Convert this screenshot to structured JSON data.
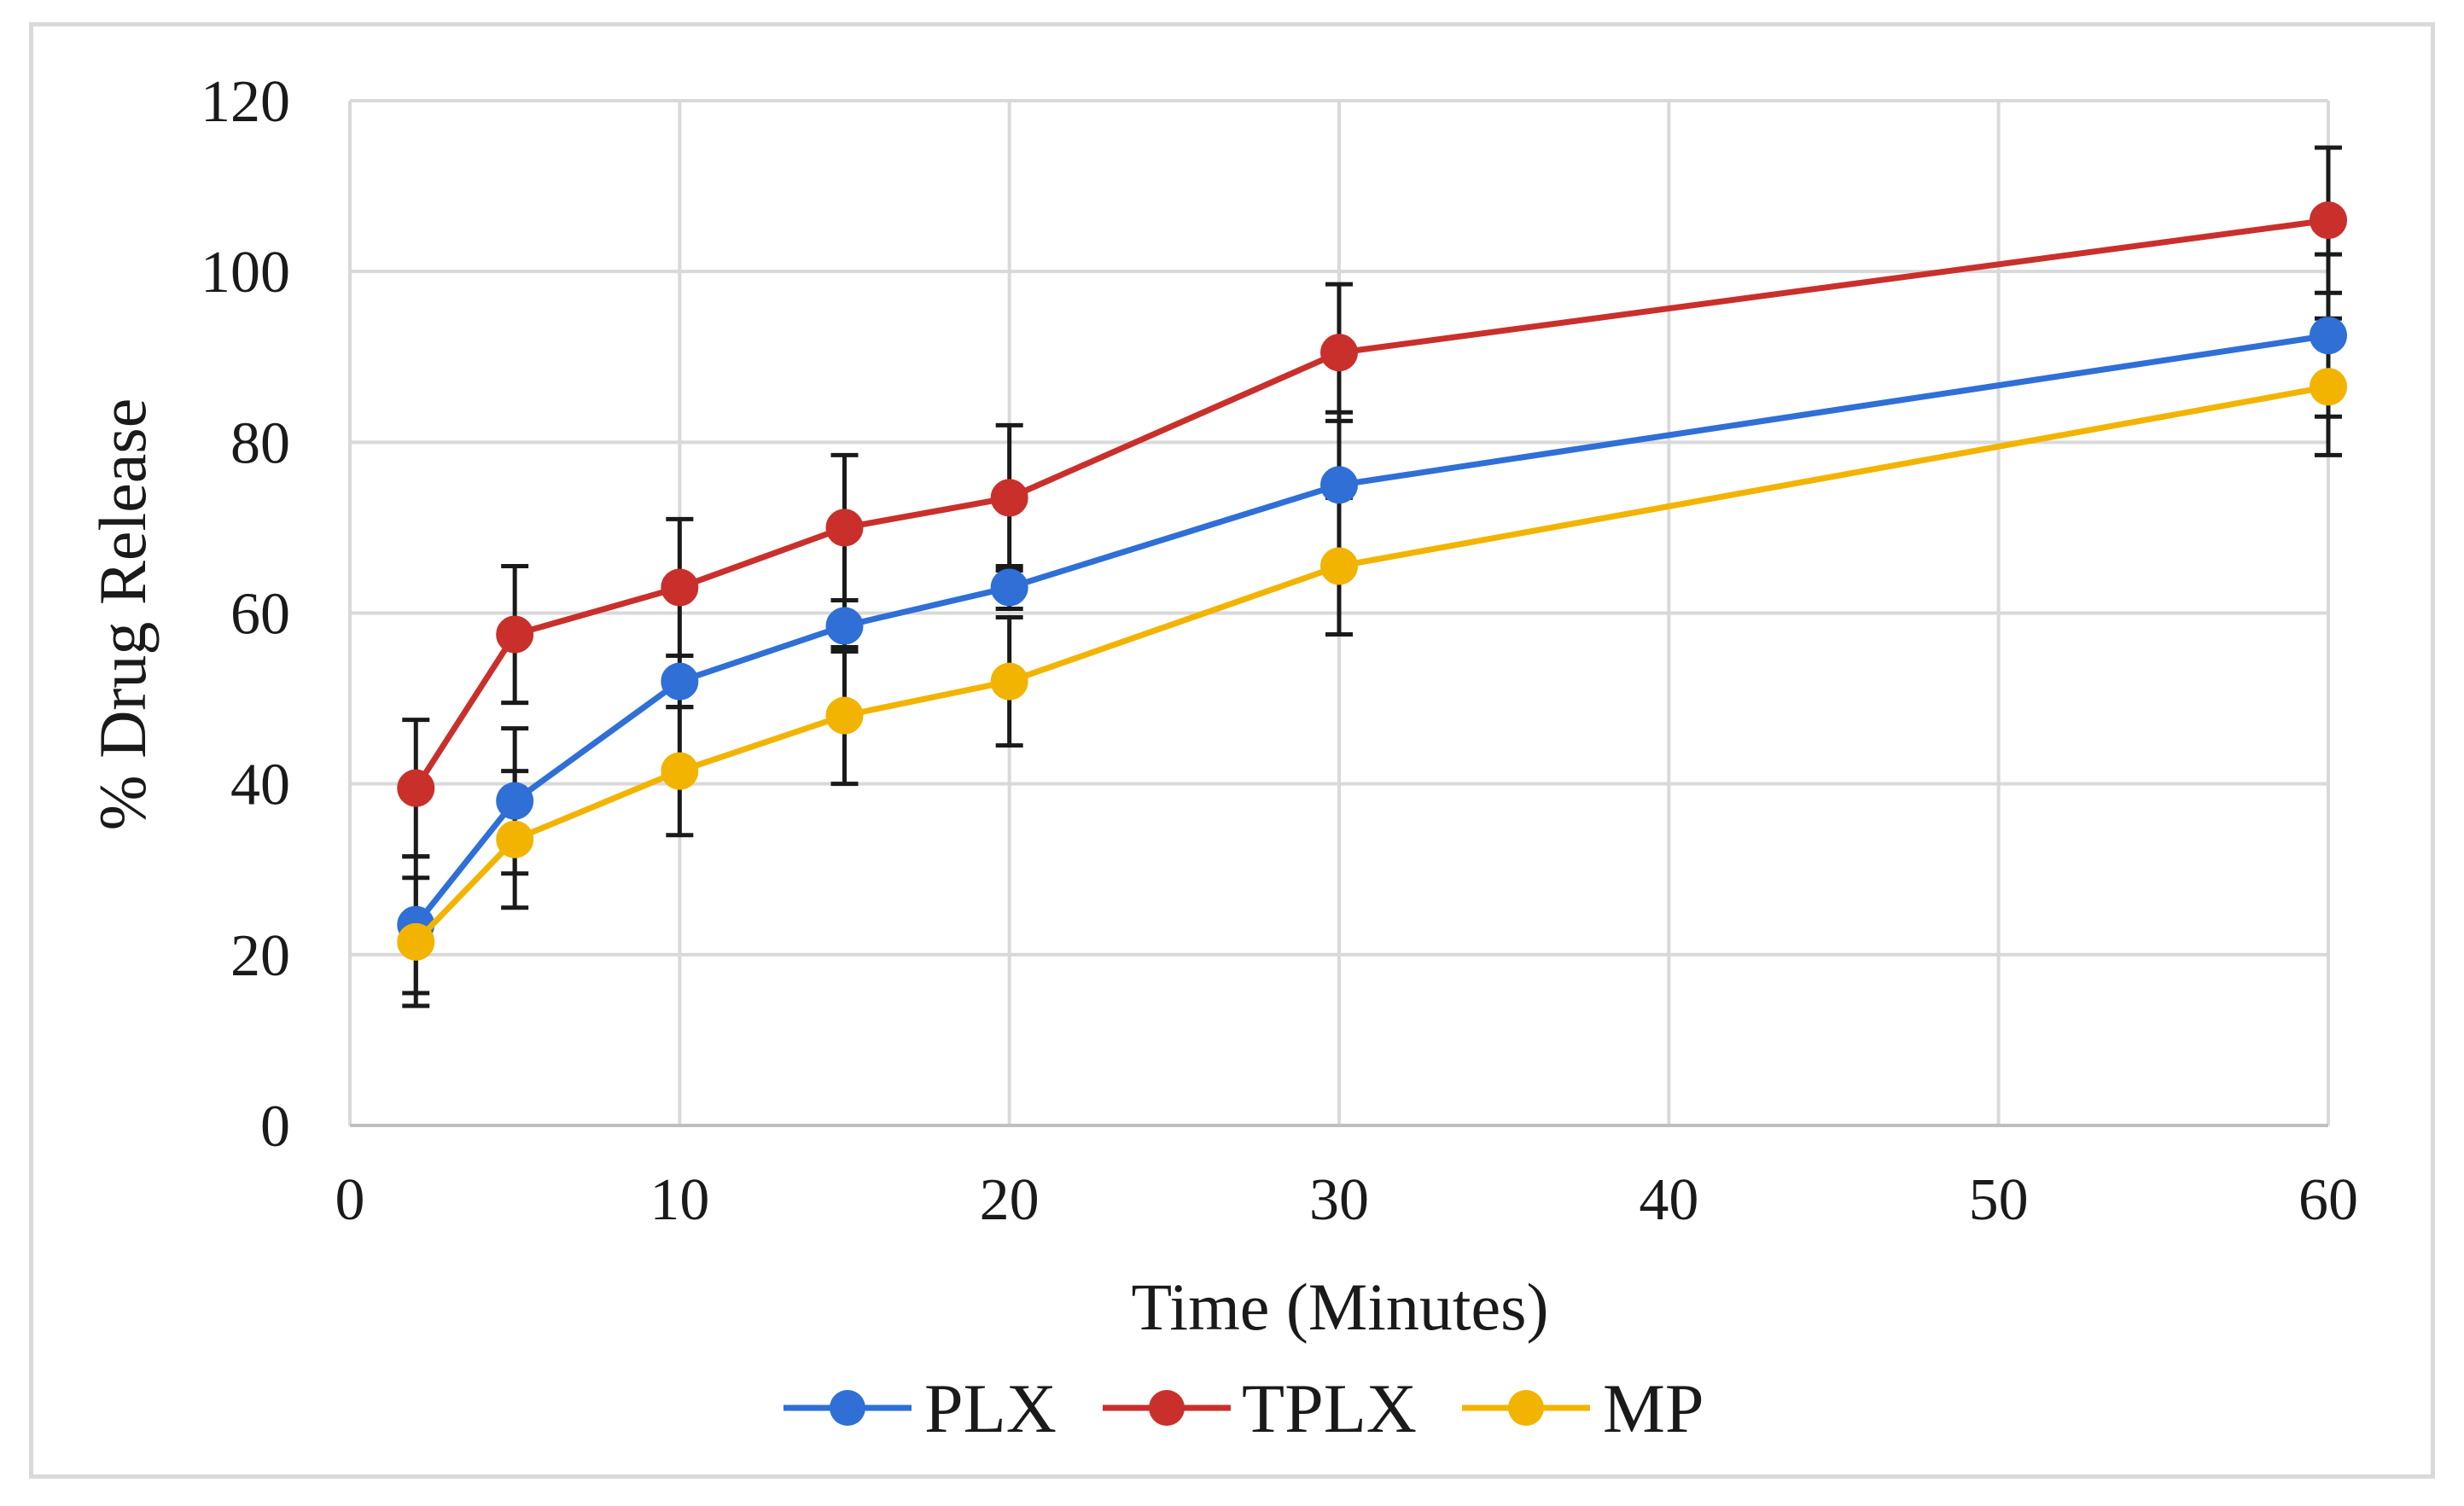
{
  "chart_data": {
    "type": "line",
    "title": "",
    "xlabel": "Time (Minutes)",
    "ylabel": "% Drug Release",
    "xlim": [
      0,
      60
    ],
    "ylim": [
      0,
      120
    ],
    "xticks": [
      0,
      10,
      20,
      30,
      40,
      50,
      60
    ],
    "yticks": [
      0,
      20,
      40,
      60,
      80,
      100,
      120
    ],
    "x": [
      2,
      5,
      10,
      15,
      20,
      30,
      60
    ],
    "grid": true,
    "legend_position": "bottom",
    "series": [
      {
        "name": "PLX",
        "color": "#2f6fd6",
        "values": [
          23.5,
          38,
          52,
          58.5,
          63,
          75,
          92.5
        ],
        "errors": [
          8,
          8.5,
          3,
          3,
          2.5,
          8.5,
          9.5
        ]
      },
      {
        "name": "TPLX",
        "color": "#c9302c",
        "values": [
          39.5,
          57.5,
          63,
          70,
          73.5,
          90.5,
          106
        ],
        "errors": [
          8,
          8,
          8,
          8.5,
          8.5,
          8,
          8.5
        ]
      },
      {
        "name": "MP",
        "color": "#f2b400",
        "values": [
          21.5,
          33.5,
          41.5,
          48,
          52,
          65.5,
          86.5
        ],
        "errors": [
          7.5,
          8,
          7.5,
          8,
          7.5,
          8,
          8
        ]
      }
    ]
  }
}
